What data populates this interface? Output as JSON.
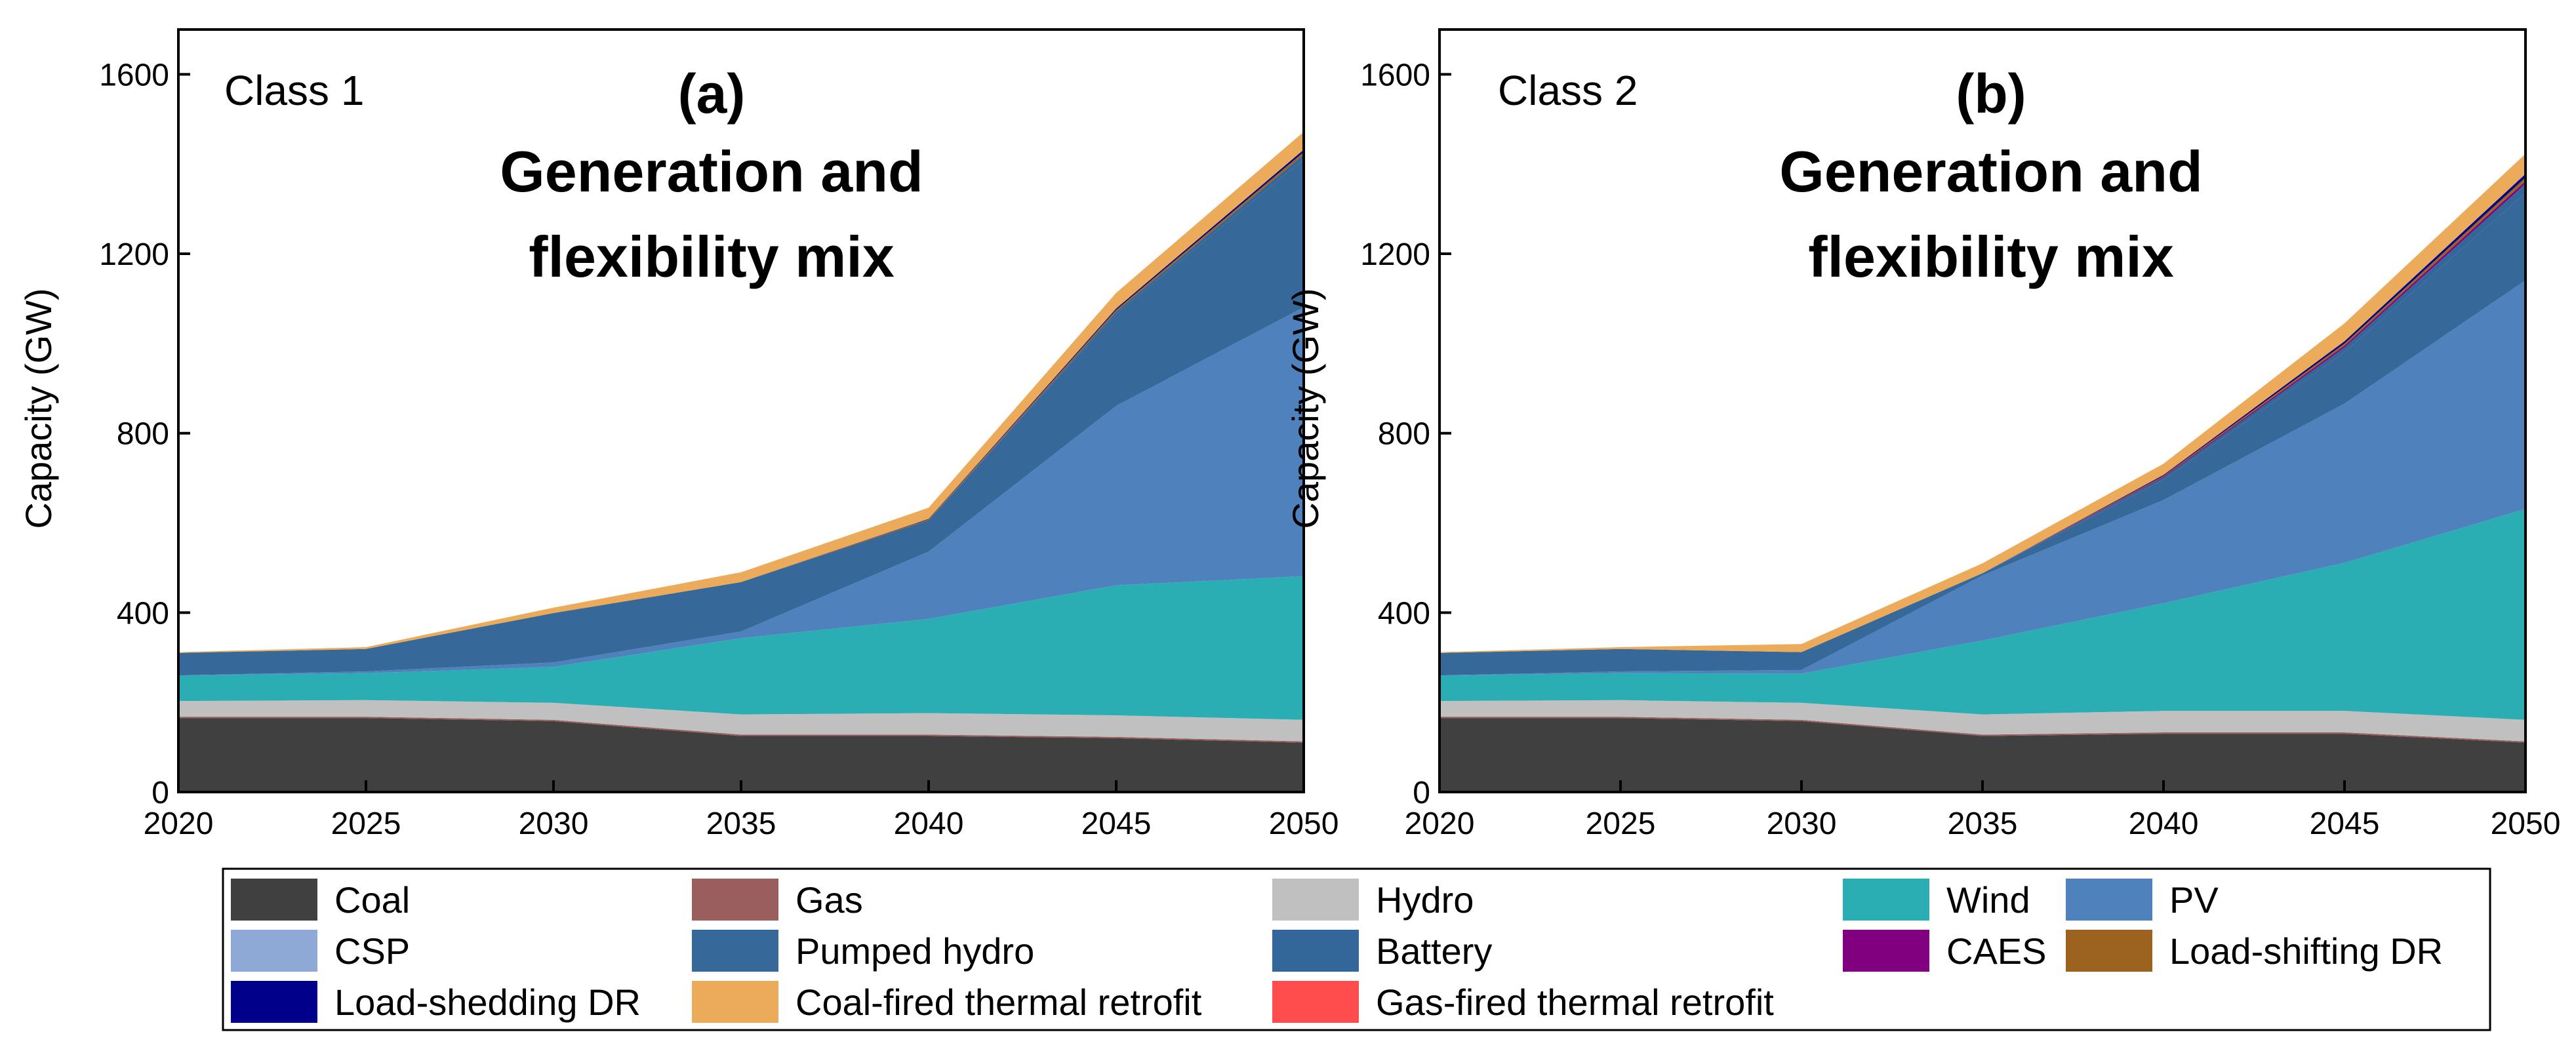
{
  "legend": [
    {
      "name": "Coal",
      "color": "#404040"
    },
    {
      "name": "Gas",
      "color": "#9b5e5e"
    },
    {
      "name": "Hydro",
      "color": "#c0c0c0"
    },
    {
      "name": "Wind",
      "color": "#2aaeb4"
    },
    {
      "name": "PV",
      "color": "#4f81bd"
    },
    {
      "name": "CSP",
      "color": "#8ea9d6"
    },
    {
      "name": "Pumped hydro",
      "color": "#366899"
    },
    {
      "name": "Battery",
      "color": "#336699"
    },
    {
      "name": "CAES",
      "color": "#800080"
    },
    {
      "name": "Load-shifting DR",
      "color": "#9c6320"
    },
    {
      "name": "Load-shedding DR",
      "color": "#00008b"
    },
    {
      "name": "Coal-fired thermal retrofit",
      "color": "#ebab5a"
    },
    {
      "name": "Gas-fired thermal retrofit",
      "color": "#ff4d4d"
    }
  ],
  "chart_data": [
    {
      "type": "area",
      "stacked": true,
      "panel_label": "Class 1",
      "panel_letter": "(a)",
      "title": "Generation and flexibility mix",
      "title_lines": [
        "Generation and",
        "flexibility mix"
      ],
      "xlabel": "",
      "ylabel": "Capacity (GW)",
      "xlim": [
        2020,
        2050
      ],
      "ylim": [
        0,
        1700
      ],
      "xticks": [
        2020,
        2025,
        2030,
        2035,
        2040,
        2045,
        2050
      ],
      "yticks": [
        0,
        400,
        800,
        1200,
        1600
      ],
      "x": [
        2020,
        2025,
        2030,
        2035,
        2040,
        2045,
        2050
      ],
      "series": [
        {
          "name": "Coal",
          "values": [
            165,
            165,
            158,
            125,
            125,
            120,
            110
          ]
        },
        {
          "name": "Gas",
          "values": [
            3,
            3,
            3,
            3,
            3,
            3,
            3
          ]
        },
        {
          "name": "Hydro",
          "values": [
            35,
            37,
            38,
            45,
            48,
            48,
            48
          ]
        },
        {
          "name": "Wind",
          "values": [
            57,
            60,
            80,
            170,
            210,
            290,
            320
          ]
        },
        {
          "name": "PV",
          "values": [
            0,
            4,
            10,
            15,
            150,
            400,
            600
          ]
        },
        {
          "name": "CSP",
          "values": [
            0,
            0,
            0,
            0,
            0,
            0,
            0
          ]
        },
        {
          "name": "Pumped hydro",
          "values": [
            50,
            50,
            110,
            110,
            70,
            205,
            330
          ]
        },
        {
          "name": "Battery",
          "values": [
            0,
            0,
            0,
            0,
            0,
            5,
            10
          ]
        },
        {
          "name": "CAES",
          "values": [
            0,
            0,
            0,
            0,
            0,
            0,
            0
          ]
        },
        {
          "name": "Load-shifting DR",
          "values": [
            0,
            0,
            0,
            0,
            2,
            4,
            6
          ]
        },
        {
          "name": "Load-shedding DR",
          "values": [
            0,
            0,
            0,
            0,
            1,
            3,
            5
          ]
        },
        {
          "name": "Coal-fired thermal retrofit",
          "values": [
            2,
            4,
            12,
            22,
            25,
            35,
            40
          ]
        },
        {
          "name": "Gas-fired thermal retrofit",
          "values": [
            0,
            0,
            0,
            0,
            0,
            0,
            0
          ]
        }
      ]
    },
    {
      "type": "area",
      "stacked": true,
      "panel_label": "Class 2",
      "panel_letter": "(b)",
      "title": "Generation and flexibility mix",
      "title_lines": [
        "Generation and",
        "flexibility mix"
      ],
      "xlabel": "",
      "ylabel": "Capacity (GW)",
      "xlim": [
        2020,
        2050
      ],
      "ylim": [
        0,
        1700
      ],
      "xticks": [
        2020,
        2025,
        2030,
        2035,
        2040,
        2045,
        2050
      ],
      "yticks": [
        0,
        400,
        800,
        1200,
        1600
      ],
      "x": [
        2020,
        2025,
        2030,
        2035,
        2040,
        2045,
        2050
      ],
      "series": [
        {
          "name": "Coal",
          "values": [
            165,
            165,
            158,
            125,
            130,
            130,
            110
          ]
        },
        {
          "name": "Gas",
          "values": [
            3,
            3,
            3,
            3,
            3,
            3,
            3
          ]
        },
        {
          "name": "Hydro",
          "values": [
            35,
            37,
            38,
            45,
            48,
            48,
            48
          ]
        },
        {
          "name": "Wind",
          "values": [
            57,
            60,
            65,
            165,
            240,
            330,
            470
          ]
        },
        {
          "name": "PV",
          "values": [
            0,
            4,
            8,
            145,
            230,
            355,
            510
          ]
        },
        {
          "name": "CSP",
          "values": [
            0,
            0,
            0,
            0,
            0,
            0,
            0
          ]
        },
        {
          "name": "Pumped hydro",
          "values": [
            50,
            50,
            40,
            5,
            45,
            115,
            195
          ]
        },
        {
          "name": "Battery",
          "values": [
            0,
            0,
            0,
            0,
            5,
            10,
            20
          ]
        },
        {
          "name": "CAES",
          "values": [
            0,
            0,
            0,
            0,
            2,
            4,
            6
          ]
        },
        {
          "name": "Load-shifting DR",
          "values": [
            0,
            0,
            0,
            0,
            2,
            5,
            8
          ]
        },
        {
          "name": "Load-shedding DR",
          "values": [
            0,
            0,
            0,
            0,
            2,
            5,
            8
          ]
        },
        {
          "name": "Coal-fired thermal retrofit",
          "values": [
            2,
            4,
            18,
            22,
            25,
            40,
            45
          ]
        },
        {
          "name": "Gas-fired thermal retrofit",
          "values": [
            0,
            0,
            0,
            0,
            0,
            0,
            0
          ]
        }
      ]
    }
  ]
}
